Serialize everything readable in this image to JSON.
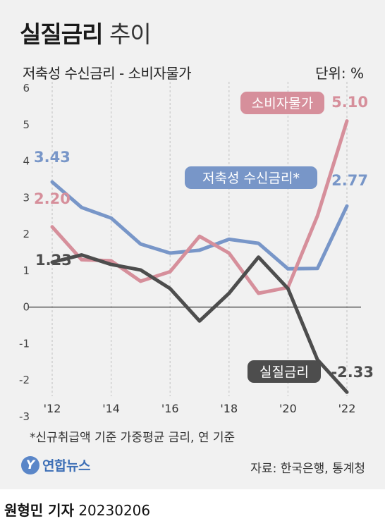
{
  "title": {
    "main": "실질금리",
    "sub": "추이"
  },
  "subtitle": "저축성 수신금리 - 소비자물가",
  "unit": "단위: %",
  "footnote": "*신규취급액 기준 가중평균 금리, 연 기준",
  "logo": {
    "mark": "Y",
    "text": "연합뉴스"
  },
  "source": "자료: 한국은행, 통계청",
  "byline": {
    "name": "원형민 기자",
    "date": "20230206"
  },
  "colors": {
    "deposit": "#7896c8",
    "cpi": "#d68f9b",
    "real": "#4d4d4d",
    "grid": "#c9c9c9",
    "zero": "#555555",
    "background": "#f1f1f1"
  },
  "chart_data": {
    "type": "line",
    "x": [
      2012,
      2013,
      2014,
      2015,
      2016,
      2017,
      2018,
      2019,
      2020,
      2021,
      2022
    ],
    "xticks": [
      2012,
      2014,
      2016,
      2018,
      2020,
      2022
    ],
    "xtick_labels": [
      "'12",
      "'14",
      "'16",
      "'18",
      "'20",
      "'22"
    ],
    "yticks": [
      -3,
      -2,
      -1,
      0,
      1,
      2,
      3,
      4,
      5,
      6
    ],
    "ylim": [
      -3,
      6
    ],
    "grid": "vertical",
    "series": [
      {
        "key": "deposit",
        "name": "저축성 수신금리*",
        "color": "#7896c8",
        "values": [
          3.43,
          2.73,
          2.44,
          1.73,
          1.48,
          1.56,
          1.86,
          1.75,
          1.05,
          1.06,
          2.77
        ],
        "start_label": "3.43",
        "end_label": "2.77"
      },
      {
        "key": "cpi",
        "name": "소비자물가",
        "color": "#d68f9b",
        "values": [
          2.2,
          1.3,
          1.27,
          0.71,
          0.97,
          1.94,
          1.48,
          0.38,
          0.54,
          2.5,
          5.1
        ],
        "start_label": "2.20",
        "end_label": "5.10"
      },
      {
        "key": "real",
        "name": "실질금리",
        "color": "#4d4d4d",
        "values": [
          1.23,
          1.43,
          1.17,
          1.02,
          0.51,
          -0.38,
          0.38,
          1.37,
          0.51,
          -1.44,
          -2.33
        ],
        "start_label": "1.23",
        "end_label": "-2.33"
      }
    ]
  }
}
